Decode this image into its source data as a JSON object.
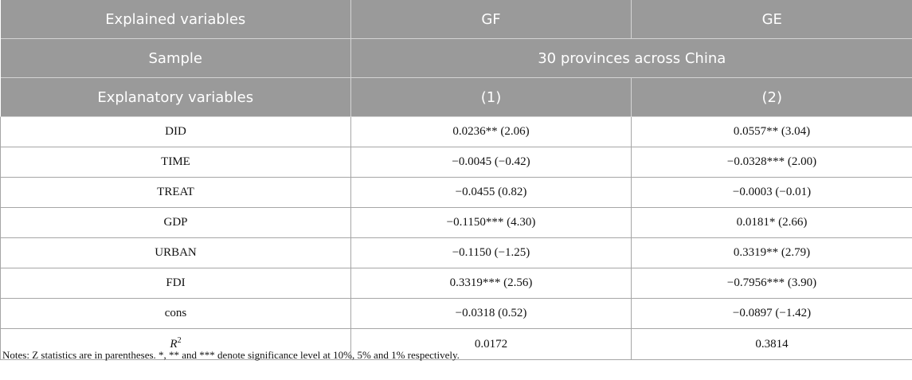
{
  "table": {
    "header": {
      "row1": {
        "label": "Explained variables",
        "col1": "GF",
        "col2": "GE"
      },
      "row2": {
        "label": "Sample",
        "span": "30 provinces across China"
      },
      "row3": {
        "label": "Explanatory variables",
        "col1": "(1)",
        "col2": "(2)"
      }
    },
    "rows": [
      {
        "var": "DID",
        "c1": "0.0236** (2.06)",
        "c2": "0.0557** (3.04)"
      },
      {
        "var": "TIME",
        "c1": "−0.0045 (−0.42)",
        "c2": "−0.0328*** (2.00)"
      },
      {
        "var": "TREAT",
        "c1": "−0.0455 (0.82)",
        "c2": "−0.0003 (−0.01)"
      },
      {
        "var": "GDP",
        "c1": "−0.1150*** (4.30)",
        "c2": "0.0181* (2.66)"
      },
      {
        "var": "URBAN",
        "c1": "−0.1150 (−1.25)",
        "c2": "0.3319** (2.79)"
      },
      {
        "var": "FDI",
        "c1": "0.3319*** (2.56)",
        "c2": "−0.7956*** (3.90)"
      },
      {
        "var": "cons",
        "c1": "−0.0318 (0.52)",
        "c2": "−0.0897 (−1.42)"
      }
    ],
    "r2_row": {
      "var_letter": "R",
      "var_sup": "2",
      "c1": "0.0172",
      "c2": "0.3814"
    }
  },
  "notes": "Notes: Z statistics are in parentheses. *, ** and *** denote significance level at 10%, 5% and 1% respectively."
}
